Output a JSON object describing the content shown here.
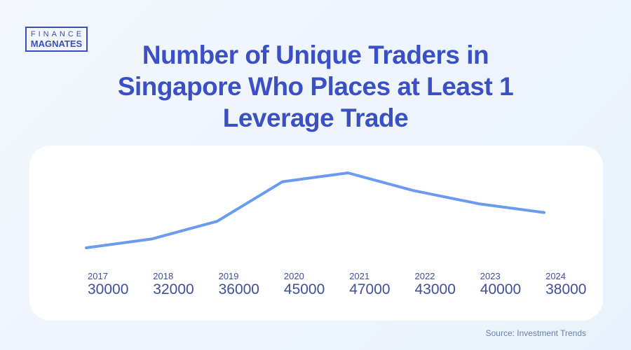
{
  "logo": {
    "line1": "FINANCE",
    "line2": "MAGNATES"
  },
  "chart_data": {
    "type": "line",
    "title": "Number of Unique Traders in Singapore Who Places at Least 1 Leverage Trade",
    "categories": [
      "2017",
      "2018",
      "2019",
      "2020",
      "2021",
      "2022",
      "2023",
      "2024"
    ],
    "values": [
      30000,
      32000,
      36000,
      45000,
      47000,
      43000,
      40000,
      38000
    ],
    "line_color": "#6b9bef",
    "text_color": "#3e4f9e",
    "grid": false,
    "source": "Source: Investment Trends"
  }
}
